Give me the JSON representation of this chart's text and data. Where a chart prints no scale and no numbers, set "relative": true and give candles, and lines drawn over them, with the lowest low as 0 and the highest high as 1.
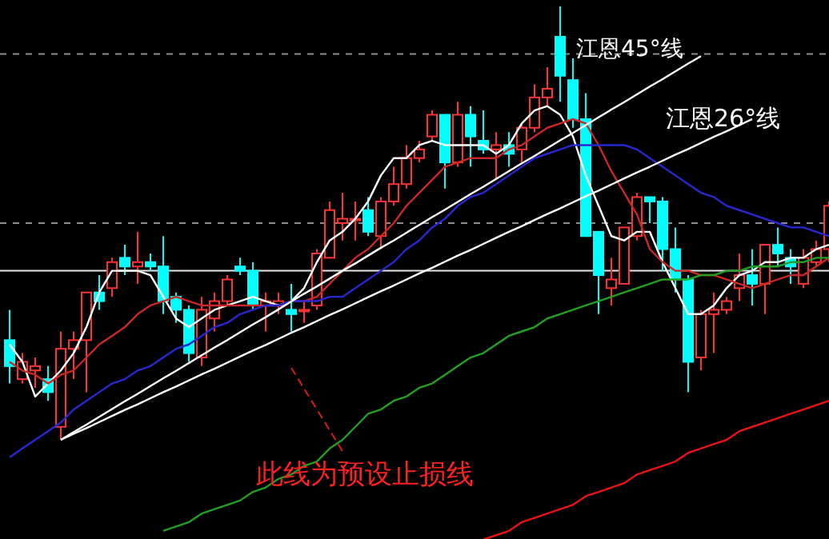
{
  "chart_data": {
    "type": "candlestick",
    "relative": true,
    "categories": [
      null,
      null,
      null,
      null,
      null,
      null,
      null,
      null,
      null,
      null,
      null,
      null,
      null,
      null,
      null,
      null,
      null,
      null,
      null,
      null,
      null,
      null,
      null,
      null,
      null,
      null,
      null,
      null,
      null,
      null,
      null,
      null,
      null,
      null,
      null,
      null,
      null,
      null,
      null,
      null,
      null,
      null,
      null,
      null,
      null,
      null,
      null,
      null,
      null,
      null,
      null,
      null,
      null,
      null,
      null,
      null,
      null,
      null,
      null,
      null,
      null,
      null,
      null,
      null,
      null
    ],
    "ohlc": [
      [
        0.23,
        0.3,
        0.13,
        0.17
      ],
      [
        0.14,
        0.2,
        0.13,
        0.18
      ],
      [
        0.16,
        0.19,
        0.12,
        0.17
      ],
      [
        0.14,
        0.17,
        0.09,
        0.11
      ],
      [
        0.03,
        0.25,
        0,
        0.21
      ],
      [
        0.21,
        0.25,
        0.14,
        0.23
      ],
      [
        0.23,
        0.34,
        0.11,
        0.34
      ],
      [
        0.34,
        0.38,
        0.3,
        0.32
      ],
      [
        0.35,
        0.42,
        0.33,
        0.41
      ],
      [
        0.42,
        0.45,
        0.38,
        0.4
      ],
      [
        0.4,
        0.48,
        0.36,
        0.41
      ],
      [
        0.41,
        0.43,
        0.39,
        0.4
      ],
      [
        0.4,
        0.47,
        0.29,
        0.32
      ],
      [
        0.33,
        0.34,
        0.27,
        0.3
      ],
      [
        0.3,
        0.31,
        0.18,
        0.2
      ],
      [
        0.19,
        0.33,
        0.17,
        0.3
      ],
      [
        0.28,
        0.34,
        0.25,
        0.32
      ],
      [
        0.32,
        0.38,
        0.31,
        0.37
      ],
      [
        0.4,
        0.42,
        0.38,
        0.39
      ],
      [
        0.39,
        0.41,
        0.3,
        0.31
      ],
      [
        0.31,
        0.34,
        0.25,
        0.32
      ],
      [
        0.31,
        0.34,
        0.29,
        0.32
      ],
      [
        0.3,
        0.36,
        0.25,
        0.29
      ],
      [
        0.3,
        0.32,
        0.27,
        0.3
      ],
      [
        0.31,
        0.44,
        0.3,
        0.43
      ],
      [
        0.42,
        0.55,
        0.42,
        0.53
      ],
      [
        0.5,
        0.57,
        0.46,
        0.51
      ],
      [
        0.51,
        0.55,
        0.46,
        0.51
      ],
      [
        0.53,
        0.56,
        0.47,
        0.48
      ],
      [
        0.47,
        0.56,
        0.44,
        0.55
      ],
      [
        0.55,
        0.63,
        0.54,
        0.59
      ],
      [
        0.59,
        0.68,
        0.58,
        0.65
      ],
      [
        0.65,
        0.69,
        0.64,
        0.67
      ],
      [
        0.7,
        0.76,
        0.69,
        0.75
      ],
      [
        0.75,
        0.75,
        0.58,
        0.64
      ],
      [
        0.64,
        0.78,
        0.63,
        0.75
      ],
      [
        0.75,
        0.77,
        0.63,
        0.7
      ],
      [
        0.69,
        0.76,
        0.66,
        0.67
      ],
      [
        0.67,
        0.71,
        0.6,
        0.68
      ],
      [
        0.68,
        0.71,
        0.63,
        0.66
      ],
      [
        0.67,
        0.73,
        0.64,
        0.72
      ],
      [
        0.72,
        0.82,
        0.71,
        0.79
      ],
      [
        0.79,
        0.86,
        0.77,
        0.81
      ],
      [
        0.93,
        1,
        0.78,
        0.84
      ],
      [
        0.83,
        0.88,
        0.72,
        0.74
      ],
      [
        0.74,
        0.8,
        0.47,
        0.47
      ],
      [
        0.48,
        0.48,
        0.29,
        0.38
      ],
      [
        0.35,
        0.42,
        0.31,
        0.37
      ],
      [
        0.36,
        0.49,
        0.36,
        0.49
      ],
      [
        0.47,
        0.57,
        0.46,
        0.56
      ],
      [
        0.56,
        0.56,
        0.5,
        0.55
      ],
      [
        0.55,
        0.56,
        0.39,
        0.44
      ],
      [
        0.44,
        0.49,
        0.34,
        0.37
      ],
      [
        0.37,
        0.38,
        0.11,
        0.18
      ],
      [
        0.19,
        0.3,
        0.16,
        0.29
      ],
      [
        0.29,
        0.34,
        0.2,
        0.3
      ],
      [
        0.3,
        0.33,
        0.29,
        0.32
      ],
      [
        0.35,
        0.43,
        0.32,
        0.38
      ],
      [
        0.38,
        0.44,
        0.31,
        0.36
      ],
      [
        0.36,
        0.45,
        0.29,
        0.45
      ],
      [
        0.45,
        0.49,
        0.4,
        0.43
      ],
      [
        0.42,
        0.44,
        0.36,
        0.4
      ],
      [
        0.36,
        0.44,
        0.35,
        0.42
      ],
      [
        0.41,
        0.46,
        0.4,
        0.44
      ],
      [
        0.44,
        0.55,
        0.41,
        0.54
      ]
    ],
    "colors": [
      "#00ffff",
      "#ff3232",
      "#ff3232",
      "#00ffff",
      "#ff3232",
      "#ff3232",
      "#ff3232",
      "#00ffff",
      "#ff3232",
      "#00ffff",
      "#ff3232",
      "#00ffff",
      "#00ffff",
      "#00ffff",
      "#00ffff",
      "#ff3232",
      "#ff3232",
      "#ff3232",
      "#00ffff",
      "#00ffff",
      "#ff3232",
      "#ff3232",
      "#00ffff",
      "#ff3232",
      "#ff3232",
      "#ff3232",
      "#ff3232",
      "#ff3232",
      "#00ffff",
      "#ff3232",
      "#ff3232",
      "#ff3232",
      "#ff3232",
      "#ff3232",
      "#00ffff",
      "#ff3232",
      "#00ffff",
      "#00ffff",
      "#ff3232",
      "#00ffff",
      "#ff3232",
      "#ff3232",
      "#ff3232",
      "#00ffff",
      "#00ffff",
      "#00ffff",
      "#00ffff",
      "#ff3232",
      "#ff3232",
      "#ff3232",
      "#00ffff",
      "#00ffff",
      "#00ffff",
      "#00ffff",
      "#ff3232",
      "#ff3232",
      "#ff3232",
      "#ff3232",
      "#00ffff",
      "#ff3232",
      "#00ffff",
      "#00ffff",
      "#ff3232",
      "#ff3232",
      "#ff3232"
    ],
    "series": [
      {
        "type": "line",
        "color": "#ffffff",
        "values": [
          0.22,
          0.18,
          0.1,
          0.13,
          0.16,
          0.2,
          0.26,
          0.34,
          0.39,
          0.39,
          0.39,
          0.38,
          0.33,
          0.28,
          0.26,
          0.28,
          0.3,
          0.31,
          0.32,
          0.33,
          0.32,
          0.31,
          0.32,
          0.35,
          0.41,
          0.46,
          0.48,
          0.51,
          0.55,
          0.61,
          0.65,
          0.65,
          0.68,
          0.69,
          0.68,
          0.68,
          0.68,
          0.68,
          0.66,
          0.68,
          0.73,
          0.76,
          0.77,
          0.75,
          0.7,
          0.61,
          0.54,
          0.47,
          0.46,
          0.48,
          0.48,
          0.41,
          0.35,
          0.29,
          0.29,
          0.31,
          0.35,
          0.38,
          0.39,
          0.41,
          0.41,
          0.42,
          0.42,
          0.44,
          0.45
        ]
      },
      {
        "type": "line",
        "color": "#c82828",
        "values": [
          0.18,
          0.16,
          0.15,
          0.13,
          0.15,
          0.16,
          0.19,
          0.22,
          0.24,
          0.26,
          0.29,
          0.31,
          0.32,
          0.33,
          0.32,
          0.31,
          0.31,
          0.31,
          0.31,
          0.31,
          0.31,
          0.31,
          0.32,
          0.32,
          0.33,
          0.36,
          0.39,
          0.42,
          0.44,
          0.47,
          0.5,
          0.54,
          0.57,
          0.6,
          0.63,
          0.64,
          0.65,
          0.65,
          0.65,
          0.67,
          0.68,
          0.7,
          0.72,
          0.73,
          0.74,
          0.73,
          0.68,
          0.62,
          0.57,
          0.52,
          0.44,
          0.41,
          0.39,
          0.39,
          0.38,
          0.38,
          0.37,
          0.36,
          0.35,
          0.36,
          0.37,
          0.38,
          0.38,
          0.4,
          0.42
        ]
      },
      {
        "type": "line",
        "color": "#2828d2",
        "values": [
          -0.04,
          -0.02,
          0,
          0.02,
          0.04,
          0.07,
          0.09,
          0.11,
          0.13,
          0.14,
          0.16,
          0.17,
          0.19,
          0.21,
          0.22,
          0.24,
          0.26,
          0.27,
          0.29,
          0.3,
          0.31,
          0.31,
          0.32,
          0.32,
          0.32,
          0.33,
          0.33,
          0.35,
          0.37,
          0.39,
          0.41,
          0.44,
          0.46,
          0.49,
          0.51,
          0.54,
          0.56,
          0.57,
          0.59,
          0.61,
          0.63,
          0.65,
          0.66,
          0.67,
          0.68,
          0.68,
          0.68,
          0.68,
          0.68,
          0.67,
          0.65,
          0.63,
          0.61,
          0.59,
          0.57,
          0.56,
          0.54,
          0.53,
          0.52,
          0.51,
          0.5,
          0.49,
          0.49,
          0.48,
          0.47
        ]
      },
      {
        "type": "line",
        "color": "#23a023",
        "values": [
          null,
          null,
          null,
          null,
          null,
          null,
          null,
          null,
          null,
          null,
          null,
          null,
          -0.21,
          -0.2,
          -0.19,
          -0.17,
          -0.16,
          -0.15,
          -0.14,
          -0.12,
          -0.11,
          -0.09,
          -0.08,
          -0.06,
          -0.05,
          -0.02,
          0,
          0.03,
          0.06,
          0.07,
          0.09,
          0.1,
          0.12,
          0.13,
          0.15,
          0.17,
          0.19,
          0.2,
          0.22,
          0.24,
          0.25,
          0.26,
          0.28,
          0.29,
          0.3,
          0.31,
          0.32,
          0.33,
          0.34,
          0.35,
          0.36,
          0.37,
          0.37,
          0.37,
          0.38,
          0.38,
          0.39,
          0.39,
          0.4,
          0.4,
          0.4,
          0.41,
          0.41,
          0.42,
          0.42
        ]
      },
      {
        "type": "line",
        "color": "#e61414",
        "values": [
          null,
          null,
          null,
          null,
          null,
          null,
          null,
          null,
          null,
          null,
          null,
          null,
          null,
          null,
          null,
          null,
          null,
          null,
          null,
          null,
          null,
          null,
          null,
          null,
          null,
          null,
          null,
          null,
          null,
          null,
          null,
          null,
          null,
          null,
          null,
          null,
          null,
          -0.23,
          -0.22,
          -0.21,
          -0.19,
          -0.18,
          -0.17,
          -0.16,
          -0.15,
          -0.13,
          -0.12,
          -0.11,
          -0.1,
          -0.08,
          -0.07,
          -0.06,
          -0.05,
          -0.03,
          -0.02,
          -0.01,
          0,
          0.02,
          0.03,
          0.04,
          0.05,
          0.06,
          0.07,
          0.08,
          0.09
        ]
      },
      {
        "type": "line",
        "color": "#ffffff",
        "values": [
          null,
          null,
          null,
          null,
          0,
          0.018,
          0.035,
          0.053,
          0.071,
          0.089,
          0.106,
          0.124,
          0.142,
          0.159,
          0.177,
          0.195,
          0.213,
          0.23,
          0.248,
          0.266,
          0.283,
          0.301,
          0.319,
          0.337,
          0.354,
          0.372,
          0.39,
          0.407,
          0.425,
          0.443,
          0.46,
          0.478,
          0.496,
          0.514,
          0.531,
          0.549,
          0.567,
          0.584,
          0.602,
          0.62,
          0.638,
          0.655,
          0.673,
          0.691,
          0.708,
          0.726,
          0.744,
          0.762,
          0.779,
          0.797,
          0.815,
          0.832,
          0.85,
          0.868,
          0.885,
          null,
          null,
          null,
          null,
          null,
          null,
          null,
          null,
          null,
          null
        ]
      },
      {
        "type": "line",
        "color": "#ffffff",
        "values": [
          null,
          null,
          null,
          null,
          0,
          0.014,
          0.027,
          0.041,
          0.055,
          0.069,
          0.082,
          0.096,
          0.11,
          0.123,
          0.137,
          0.151,
          0.164,
          0.178,
          0.192,
          0.206,
          0.219,
          0.233,
          0.247,
          0.26,
          0.274,
          0.288,
          0.301,
          0.315,
          0.329,
          0.343,
          0.356,
          0.37,
          0.384,
          0.397,
          0.411,
          0.425,
          0.438,
          0.452,
          0.466,
          0.48,
          0.493,
          0.507,
          0.521,
          0.534,
          0.548,
          0.562,
          0.575,
          0.589,
          0.603,
          0.617,
          0.63,
          0.644,
          0.658,
          0.671,
          0.685,
          0.699,
          0.712,
          0.726,
          0.74,
          null,
          null,
          null,
          null,
          null,
          null
        ]
      }
    ],
    "ref_lines": [
      {
        "axis": "y",
        "value": 0.89,
        "color": "#8c8c8c",
        "line_style": "dashed"
      },
      {
        "axis": "y",
        "value": 0.5,
        "color": "#8c8c8c",
        "line_style": "dashed"
      },
      {
        "axis": "y",
        "value": 0.39,
        "color": "#e6e6e6",
        "line_style": "solid"
      }
    ],
    "annotations": [
      "江恩45°线",
      "江恩26°线",
      "此线为预设止损线"
    ]
  }
}
